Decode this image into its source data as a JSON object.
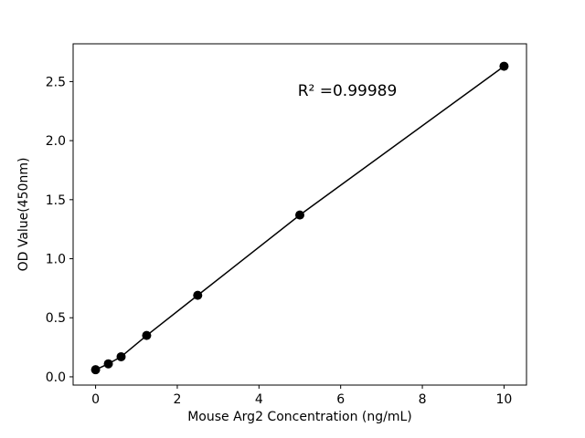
{
  "chart_data": {
    "type": "scatter",
    "title": "",
    "xlabel": "Mouse Arg2 Concentration (ng/mL)",
    "ylabel": "OD Value(450nm)",
    "annotation": {
      "text": "R² =0.99989"
    },
    "x": [
      0,
      0.3125,
      0.625,
      1.25,
      2.5,
      5,
      10
    ],
    "y": [
      0.06,
      0.11,
      0.17,
      0.35,
      0.69,
      1.37,
      2.63
    ],
    "xticks": {
      "values": [
        0,
        2,
        4,
        6,
        8,
        10
      ],
      "labels": [
        "0",
        "2",
        "4",
        "6",
        "8",
        "10"
      ]
    },
    "yticks": {
      "values": [
        0,
        0.5,
        1.0,
        1.5,
        2.0,
        2.5
      ],
      "labels": [
        "0.0",
        "0.5",
        "1.0",
        "1.5",
        "2.0",
        "2.5"
      ]
    },
    "xlim": [
      -0.55,
      10.55
    ],
    "ylim": [
      -0.07,
      2.82
    ],
    "line_color": "#000000",
    "marker_color": "#000000",
    "marker_shape": "circle",
    "background": "#ffffff",
    "grid": false,
    "legend": "none"
  }
}
